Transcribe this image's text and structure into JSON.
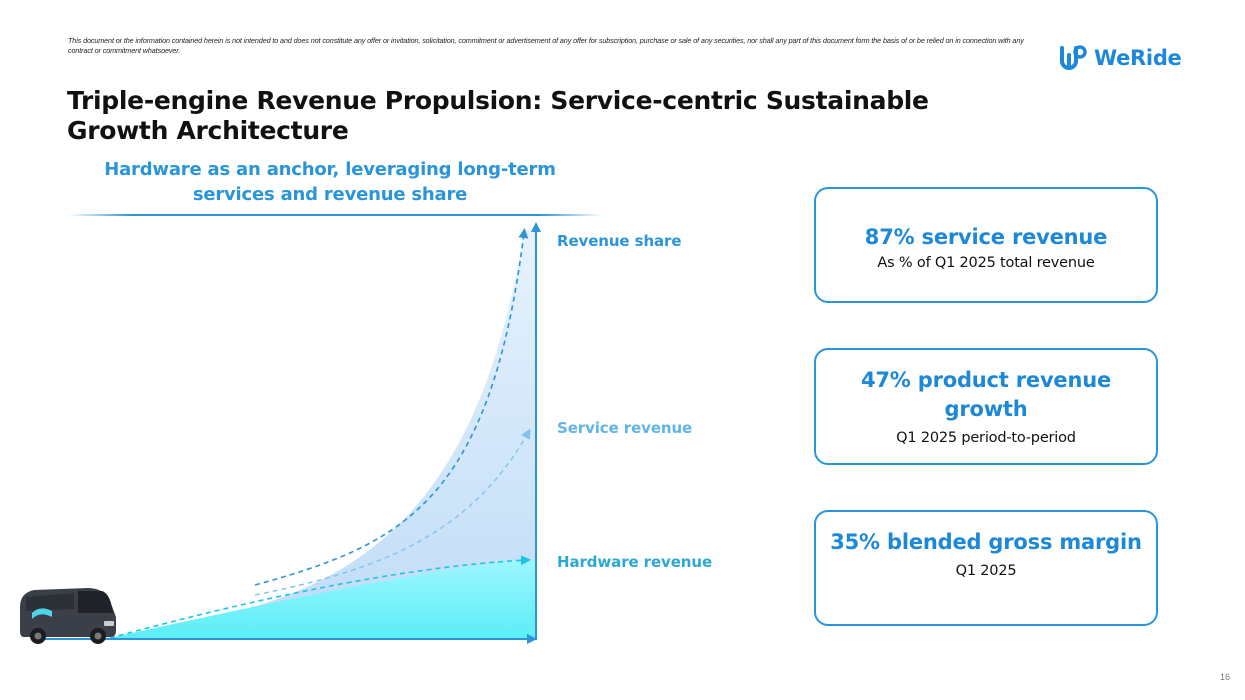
{
  "disclaimer": "This document or the information contained herein is not intended to and does not constitute any offer or invitation, solicitation, commitment or advertisement of any offer for subscription, purchase or sale of any securities, nor shall any part of this document form the basis of or be relied on in connection with any contract or commitment whatsoever.",
  "logo": {
    "text": "WeRide",
    "icon": "weride-logo-mark"
  },
  "title": "Triple-engine Revenue Propulsion: Service-centric Sustainable Growth Architecture",
  "subtitle": "Hardware as an anchor, leveraging long-term services and revenue share",
  "illustration": {
    "series_labels": [
      "Revenue share",
      "Service revenue",
      "Hardware revenue"
    ],
    "icon": "robovan-icon",
    "colors": {
      "revenue_share": "#2b95d9",
      "service": "#7cc4ee",
      "hardware": "#19c6e6",
      "fill_light": "#cfe6fa",
      "fill_cyan": "#7ff4ff"
    }
  },
  "cards": [
    {
      "headline": "87% service revenue",
      "subtext": "As % of Q1 2025 total revenue"
    },
    {
      "headline": "47% product revenue growth",
      "subtext": "Q1 2025 period-to-period"
    },
    {
      "headline": "35% blended gross margin",
      "subtext": "Q1 2025"
    }
  ],
  "page_number": "16",
  "colors": {
    "accent": "#2b95d9",
    "brand": "#1d88d8",
    "text": "#111111"
  }
}
